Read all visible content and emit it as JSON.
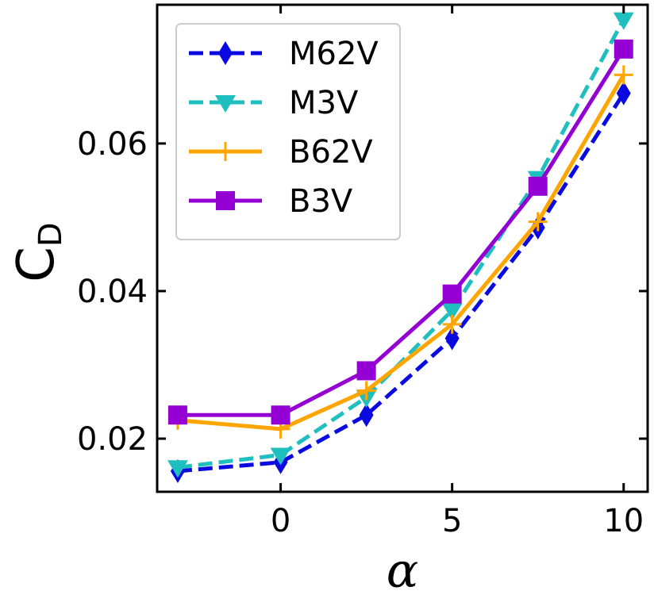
{
  "chart_data": {
    "type": "line",
    "title": "",
    "xlabel": "α",
    "ylabel": {
      "main": "C",
      "subscript": "D"
    },
    "xlim": [
      -3.6,
      10.7
    ],
    "ylim": [
      0.0128,
      0.0788
    ],
    "xticks": [
      0,
      5,
      10
    ],
    "xtick_labels": [
      "0",
      "5",
      "10"
    ],
    "yticks": [
      0.02,
      0.04,
      0.06
    ],
    "ytick_labels": [
      "0.02",
      "0.04",
      "0.06"
    ],
    "grid": false,
    "legend_position": "top-left",
    "x": [
      -3,
      0,
      2.5,
      5,
      7.5,
      10
    ],
    "series": [
      {
        "name": "M62V",
        "color": "#0a0ae0",
        "line": "dashed",
        "marker": "diamond",
        "values": [
          0.0156,
          0.0168,
          0.0232,
          0.0336,
          0.0486,
          0.0668
        ]
      },
      {
        "name": "M3V",
        "color": "#1fbfbf",
        "line": "dashed",
        "marker": "triangle-down",
        "values": [
          0.0161,
          0.0178,
          0.0256,
          0.0374,
          0.0553,
          0.0768
        ]
      },
      {
        "name": "B62V",
        "color": "#ffa500",
        "line": "solid",
        "marker": "plus",
        "values": [
          0.0225,
          0.0213,
          0.0265,
          0.0355,
          0.0494,
          0.0693
        ]
      },
      {
        "name": "B3V",
        "color": "#9400d3",
        "line": "solid",
        "marker": "square",
        "values": [
          0.0232,
          0.0232,
          0.0292,
          0.0396,
          0.0542,
          0.0728
        ]
      }
    ]
  }
}
